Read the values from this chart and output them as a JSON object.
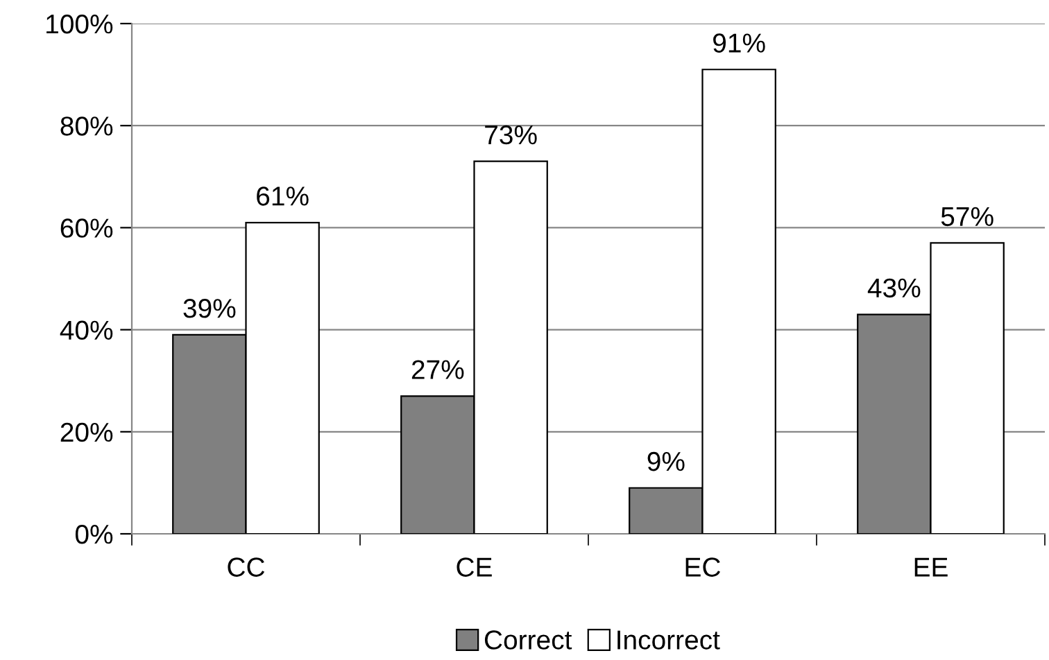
{
  "chart_data": {
    "type": "bar",
    "categories": [
      "CC",
      "CE",
      "EC",
      "EE"
    ],
    "series": [
      {
        "name": "Correct",
        "color": "#808080",
        "values": [
          39,
          27,
          9,
          43
        ],
        "value_labels": [
          "39%",
          "27%",
          "9%",
          "43%"
        ]
      },
      {
        "name": "Incorrect",
        "color": "#ffffff",
        "values": [
          61,
          73,
          91,
          57
        ],
        "value_labels": [
          "61%",
          "73%",
          "91%",
          "57%"
        ]
      }
    ],
    "ylim": [
      0,
      100
    ],
    "yticks": [
      {
        "value": 0,
        "label": "0%"
      },
      {
        "value": 20,
        "label": "20%"
      },
      {
        "value": 40,
        "label": "40%"
      },
      {
        "value": 60,
        "label": "60%"
      },
      {
        "value": 80,
        "label": "80%"
      },
      {
        "value": 100,
        "label": "100%"
      }
    ],
    "grid": "y",
    "legend": "bottom"
  }
}
